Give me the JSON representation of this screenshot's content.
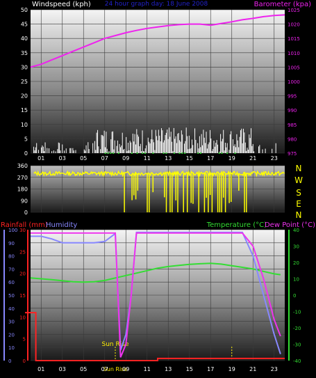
{
  "colors": {
    "background": "#000000",
    "wind": "#ffffff",
    "gust_tick": "#33cc33",
    "barometer": "#ee22ee",
    "direction": "#ffff00",
    "rainfall": "#ff2222",
    "humidity": "#8888ff",
    "temperature": "#33dd33",
    "dewpoint": "#ee33ee",
    "sun": "#ffee00",
    "title": "#2222cc"
  },
  "chart_data": [
    {
      "type": "line",
      "id": "wind_pressure",
      "title": "24 hour graph day: 18 June 2008",
      "left_axis_label": "Windspeed (kph)",
      "right_axis_label": "Barometer (kpa)",
      "x_ticks": [
        "01",
        "03",
        "05",
        "07",
        "09",
        "11",
        "13",
        "15",
        "17",
        "19",
        "21",
        "23"
      ],
      "ylim_left": [
        0,
        50
      ],
      "ylim_right": [
        975,
        1025
      ],
      "y_ticks_left": [
        "0",
        "5",
        "10",
        "15",
        "20",
        "25",
        "30",
        "35",
        "40",
        "45",
        "50"
      ],
      "y_ticks_right": [
        "975",
        "980",
        "985",
        "990",
        "995",
        "1000",
        "1005",
        "1010",
        "1015",
        "1020",
        "1025"
      ],
      "barometer_series": {
        "x": [
          0,
          1,
          2,
          3,
          4,
          5,
          6,
          7,
          8,
          9,
          10,
          11,
          12,
          13,
          14,
          15,
          16,
          17,
          18,
          19,
          20,
          21,
          22,
          23,
          24
        ],
        "y": [
          1005,
          1006,
          1007.5,
          1009,
          1010.5,
          1012,
          1013.5,
          1015,
          1016,
          1017,
          1017.8,
          1018.5,
          1019,
          1019.5,
          1019.8,
          1020,
          1020,
          1019.6,
          1020.2,
          1020.8,
          1021.5,
          1022,
          1022.6,
          1023,
          1023.2
        ]
      },
      "wind_series": {
        "name": "",
        "x": [],
        "y": [],
        "x_range": [
          0,
          24
        ],
        "max_kph": 9
      }
    },
    {
      "type": "scatter",
      "id": "wind_direction",
      "ylim": [
        0,
        360
      ],
      "y_ticks": [
        "0",
        "90",
        "180",
        "270",
        "360"
      ],
      "compass_labels": [
        "N",
        "W",
        "S",
        "E",
        "N"
      ],
      "typical_deg": 300
    },
    {
      "type": "line",
      "id": "rain_hum_temp",
      "left_axis_label_1": "Rainfall (mm)",
      "left_axis_label_2": "Humidity",
      "right_axis_label_1": "Temperature (°C)",
      "right_axis_label_2": "Dew Point (°C)",
      "x_ticks": [
        "01",
        "03",
        "05",
        "07",
        "09",
        "11",
        "13",
        "15",
        "17",
        "19",
        "21",
        "23"
      ],
      "humidity_ticks": [
        "0",
        "10",
        "20",
        "30",
        "40",
        "50",
        "60",
        "70",
        "80",
        "90",
        "100"
      ],
      "rain_ticks": [
        "0",
        "5",
        "10",
        "15",
        "20",
        "25",
        "30"
      ],
      "temp_ticks": [
        "-40",
        "-30",
        "-20",
        "-10",
        "0",
        "10",
        "20",
        "30",
        "40"
      ],
      "humidity_lim": [
        0,
        100
      ],
      "rain_lim": [
        0,
        30
      ],
      "temp_lim": [
        -40,
        40
      ],
      "sunrise_label": "Sun Rise",
      "sunset_label": "Sun Rise",
      "sunrise_hour": 8.0,
      "sunset_hour": 19.0,
      "temperature": {
        "x": [
          0,
          1,
          2,
          3,
          4,
          5,
          6,
          7,
          8,
          9,
          10,
          11,
          12,
          13,
          14,
          15,
          16,
          17,
          18,
          19,
          20,
          21,
          22,
          23,
          23.6
        ],
        "y": [
          10.5,
          10,
          9.5,
          8.8,
          8.2,
          8,
          8.2,
          9,
          10.5,
          12,
          13.5,
          15,
          16.5,
          17.5,
          18.2,
          18.8,
          19.2,
          19.5,
          19,
          18,
          17,
          16,
          14.5,
          13,
          12.5
        ]
      },
      "dew_point": {
        "x": [
          0,
          1,
          2,
          3,
          4,
          5,
          6,
          7,
          8,
          8.5,
          9,
          9.5,
          10,
          11,
          12,
          13,
          14,
          15,
          16,
          17,
          18,
          19,
          20,
          21,
          22,
          23,
          23.6
        ],
        "y": [
          38,
          38,
          38,
          38,
          38,
          38,
          38,
          38,
          38,
          -38,
          -30,
          0,
          38,
          38,
          38,
          38,
          38,
          38,
          38,
          38,
          38,
          38,
          38,
          30,
          10,
          -15,
          -25
        ]
      },
      "humidity": {
        "x": [
          0,
          1,
          2,
          3,
          4,
          5,
          6,
          7,
          8,
          8.5,
          9,
          9.5,
          10,
          11,
          12,
          13,
          14,
          15,
          16,
          17,
          18,
          19,
          20,
          21,
          22,
          23,
          23.6
        ],
        "y": [
          95,
          95,
          93,
          90,
          90,
          90,
          90,
          91,
          97,
          8,
          20,
          50,
          98,
          98,
          98,
          98,
          98,
          98,
          98,
          98,
          98,
          98,
          98,
          80,
          50,
          20,
          5
        ]
      },
      "rainfall": {
        "x": [
          0,
          0.5,
          0.5,
          1,
          12,
          12,
          24
        ],
        "y": [
          11,
          11,
          0,
          0,
          0,
          0.5,
          0.5
        ]
      }
    }
  ]
}
